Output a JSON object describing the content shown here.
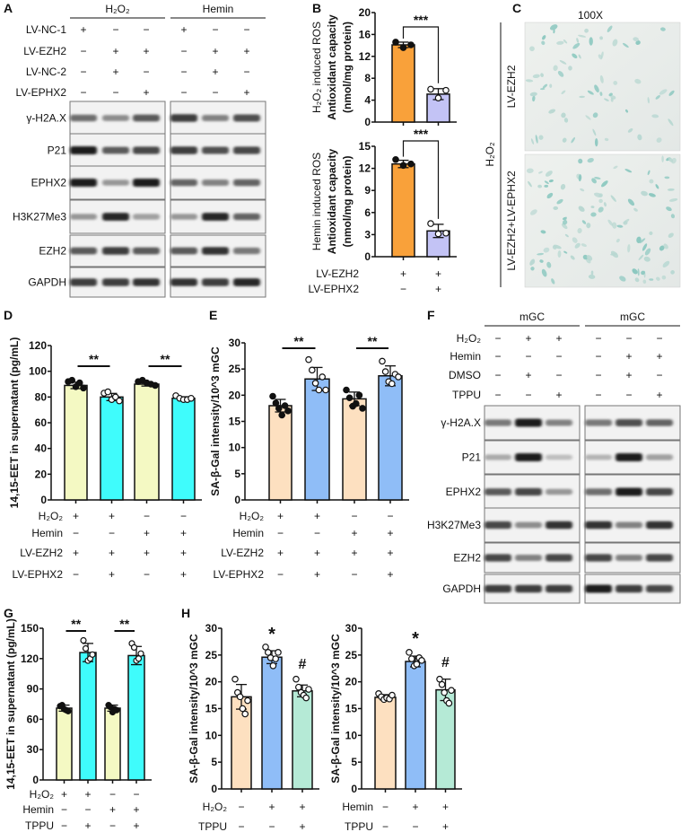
{
  "panel_letters": [
    "A",
    "B",
    "C",
    "D",
    "E",
    "F",
    "G",
    "H"
  ],
  "panel_A": {
    "groups": [
      "H₂O₂",
      "Hemin"
    ],
    "conditions": [
      {
        "label": "LV-NC-1",
        "signs": [
          "+",
          "−",
          "−",
          "+",
          "−",
          "−"
        ]
      },
      {
        "label": "LV-EZH2",
        "signs": [
          "−",
          "+",
          "+",
          "−",
          "+",
          "+"
        ]
      },
      {
        "label": "LV-NC-2",
        "signs": [
          "−",
          "+",
          "−",
          "−",
          "+",
          "−"
        ]
      },
      {
        "label": "LV-EPHX2",
        "signs": [
          "−",
          "−",
          "+",
          "−",
          "−",
          "+"
        ]
      }
    ],
    "blots": [
      {
        "label": "γ-H2A.X",
        "intensity": [
          0.6,
          0.45,
          0.7,
          0.85,
          0.5,
          0.75
        ]
      },
      {
        "label": "P21",
        "intensity": [
          1,
          0.7,
          0.8,
          0.85,
          0.75,
          0.8
        ]
      },
      {
        "label": "EPHX2",
        "intensity": [
          1,
          0.4,
          1,
          0.65,
          0.5,
          0.65
        ]
      },
      {
        "label": "H3K27Me3",
        "intensity": [
          0.4,
          0.95,
          0.35,
          0.4,
          0.95,
          0.65
        ]
      },
      {
        "label": "EZH2",
        "intensity": [
          0.7,
          0.85,
          0.7,
          0.7,
          0.9,
          0.55
        ]
      },
      {
        "label": "GAPDH",
        "intensity": [
          0.85,
          0.85,
          0.9,
          0.9,
          0.85,
          0.95
        ]
      }
    ]
  },
  "panel_C": {
    "magnification": "100X",
    "group_label": "H₂O₂",
    "rows": [
      "LV-EZH2",
      "LV-EZH2+LV-EPHX2"
    ]
  },
  "panel_F": {
    "groups": [
      "mGC",
      "mGC"
    ],
    "conditions": [
      {
        "label": "H₂O₂",
        "signs": [
          "−",
          "+",
          "+",
          "−",
          "−",
          "−"
        ]
      },
      {
        "label": "Hemin",
        "signs": [
          "−",
          "−",
          "−",
          "−",
          "+",
          "+"
        ]
      },
      {
        "label": "DMSO",
        "signs": [
          "−",
          "+",
          "−",
          "−",
          "+",
          "−"
        ]
      },
      {
        "label": "TPPU",
        "signs": [
          "−",
          "−",
          "+",
          "−",
          "−",
          "+"
        ]
      }
    ],
    "blots": [
      {
        "label": "γ-H2A.X",
        "intensity": [
          0.55,
          1,
          0.5,
          0.55,
          0.75,
          0.65
        ]
      },
      {
        "label": "P21",
        "intensity": [
          0.3,
          1,
          0.2,
          0.25,
          1,
          0.35
        ]
      },
      {
        "label": "EPHX2",
        "intensity": [
          0.7,
          0.8,
          0.4,
          0.6,
          1,
          0.8
        ]
      },
      {
        "label": "H3K27Me3",
        "intensity": [
          0.8,
          0.45,
          0.9,
          0.9,
          0.5,
          0.9
        ]
      },
      {
        "label": "EZH2",
        "intensity": [
          0.8,
          0.5,
          0.8,
          0.8,
          0.5,
          0.8
        ]
      },
      {
        "label": "GAPDH",
        "intensity": [
          0.85,
          0.85,
          0.85,
          1,
          0.85,
          0.8
        ]
      }
    ]
  },
  "chart_data": [
    {
      "id": "B1",
      "type": "bar",
      "ylabel_context": "H₂O₂ induced ROS",
      "ylabel": [
        "Antioxidant capacity",
        "(nmol/mg protein)"
      ],
      "ylim": [
        0,
        20
      ],
      "yticks": [
        0,
        4,
        8,
        12,
        16,
        20
      ],
      "bars": [
        {
          "mean": 14.1,
          "sd": 0.5,
          "points": [
            14.6,
            13.6,
            14.1
          ],
          "color": "#f9a13a",
          "filled": true
        },
        {
          "mean": 5.1,
          "sd": 1.0,
          "points": [
            6.0,
            4.4,
            5.8
          ],
          "color": "#c3c3f5",
          "filled": false
        }
      ],
      "significance": [
        {
          "bars": [
            0,
            1
          ],
          "label": "***"
        }
      ],
      "annotations": [],
      "conditions": []
    },
    {
      "id": "B2",
      "type": "bar",
      "ylabel_context": "Hemin induced ROS",
      "ylabel": [
        "Antioxidant capacity",
        "(nmol/mg protein)"
      ],
      "ylim": [
        0,
        15
      ],
      "yticks": [
        0,
        3,
        6,
        9,
        12,
        15
      ],
      "bars": [
        {
          "mean": 12.6,
          "sd": 0.5,
          "points": [
            13.2,
            12.4,
            12.6
          ],
          "color": "#f9a13a",
          "filled": true
        },
        {
          "mean": 3.5,
          "sd": 0.9,
          "points": [
            4.5,
            3.1,
            3.2
          ],
          "color": "#c3c3f5",
          "filled": false
        }
      ],
      "significance": [
        {
          "bars": [
            0,
            1
          ],
          "label": "***"
        }
      ],
      "annotations": [],
      "conditions": [
        {
          "label": "LV-EZH2",
          "signs": [
            "+",
            "+"
          ]
        },
        {
          "label": "LV-EPHX2",
          "signs": [
            "−",
            "+"
          ]
        }
      ]
    },
    {
      "id": "D",
      "type": "bar",
      "ylabel": [
        "14,15-EET in supernatant (pg/mL)"
      ],
      "ylim": [
        0,
        120
      ],
      "yticks": [
        0,
        20,
        40,
        60,
        80,
        100,
        120
      ],
      "bars": [
        {
          "mean": 89,
          "sd": 2.5,
          "points": [
            92,
            93,
            88,
            91,
            87
          ],
          "color": "#f4f9c3",
          "filled": true
        },
        {
          "mean": 80,
          "sd": 2.8,
          "points": [
            83,
            84,
            78,
            80,
            77
          ],
          "color": "#3ffcfc",
          "filled": false
        },
        {
          "mean": 90,
          "sd": 1.5,
          "points": [
            92,
            93,
            91,
            90,
            89
          ],
          "color": "#f4f9c3",
          "filled": true
        },
        {
          "mean": 79,
          "sd": 1.2,
          "points": [
            81,
            79,
            78,
            78,
            79
          ],
          "color": "#3ffcfc",
          "filled": false
        }
      ],
      "significance": [
        {
          "bars": [
            0,
            1
          ],
          "label": "**"
        },
        {
          "bars": [
            2,
            3
          ],
          "label": "**"
        }
      ],
      "annotations": [],
      "conditions": [
        {
          "label": "H₂O₂",
          "signs": [
            "+",
            "+",
            "−",
            "−"
          ]
        },
        {
          "label": "Hemin",
          "signs": [
            "−",
            "−",
            "+",
            "+"
          ]
        },
        {
          "label": "LV-EZH2",
          "signs": [
            "+",
            "+",
            "+",
            "+"
          ]
        },
        {
          "label": "LV-EPHX2",
          "signs": [
            "−",
            "+",
            "−",
            "+"
          ]
        }
      ]
    },
    {
      "id": "E",
      "type": "bar",
      "ylabel": [
        "SA-β-Gal intensity/10^3 mGC"
      ],
      "ylim": [
        0,
        30
      ],
      "yticks": [
        0,
        5,
        10,
        15,
        20,
        25,
        30
      ],
      "bars": [
        {
          "mean": 18,
          "sd": 1.2,
          "points": [
            19.8,
            18.5,
            17.5,
            16.2,
            18,
            17
          ],
          "color": "#fde0c0",
          "filled": true
        },
        {
          "mean": 23.1,
          "sd": 2.2,
          "points": [
            26.8,
            24.8,
            22.3,
            21,
            23.5,
            21
          ],
          "color": "#8fbdf7",
          "filled": false
        },
        {
          "mean": 19.3,
          "sd": 1.3,
          "points": [
            21,
            19.5,
            17.9,
            18.4,
            20,
            17.5
          ],
          "color": "#fde0c0",
          "filled": true
        },
        {
          "mean": 23.7,
          "sd": 1.9,
          "points": [
            26.5,
            24.5,
            22.6,
            22.2,
            24,
            23.5
          ],
          "color": "#8fbdf7",
          "filled": false
        }
      ],
      "significance": [
        {
          "bars": [
            0,
            1
          ],
          "label": "**"
        },
        {
          "bars": [
            2,
            3
          ],
          "label": "**"
        }
      ],
      "annotations": [],
      "conditions": [
        {
          "label": "H₂O₂",
          "signs": [
            "+",
            "+",
            "−",
            "−"
          ]
        },
        {
          "label": "Hemin",
          "signs": [
            "−",
            "−",
            "+",
            "+"
          ]
        },
        {
          "label": "LV-EZH2",
          "signs": [
            "+",
            "+",
            "+",
            "+"
          ]
        },
        {
          "label": "LV-EPHX2",
          "signs": [
            "−",
            "+",
            "−",
            "+"
          ]
        }
      ]
    },
    {
      "id": "G",
      "type": "bar",
      "ylabel": [
        "14,15-EET in supernatant (pg/mL)"
      ],
      "ylim": [
        0,
        150
      ],
      "yticks": [
        0,
        30,
        60,
        90,
        120,
        150
      ],
      "bars": [
        {
          "mean": 71,
          "sd": 3,
          "points": [
            73,
            74,
            70,
            69,
            68
          ],
          "color": "#f4f9c3",
          "filled": true
        },
        {
          "mean": 126,
          "sd": 9,
          "points": [
            138,
            130,
            118,
            120,
            124
          ],
          "color": "#3ffcfc",
          "filled": false
        },
        {
          "mean": 71,
          "sd": 3,
          "points": [
            74,
            72,
            67,
            70,
            69
          ],
          "color": "#f4f9c3",
          "filled": true
        },
        {
          "mean": 123,
          "sd": 9,
          "points": [
            135,
            131,
            118,
            120,
            125
          ],
          "color": "#3ffcfc",
          "filled": false
        }
      ],
      "significance": [
        {
          "bars": [
            0,
            1
          ],
          "label": "**"
        },
        {
          "bars": [
            2,
            3
          ],
          "label": "**"
        }
      ],
      "annotations": [],
      "conditions": [
        {
          "label": "H₂O₂",
          "signs": [
            "+",
            "+",
            "−",
            "−"
          ]
        },
        {
          "label": "Hemin",
          "signs": [
            "−",
            "−",
            "+",
            "+"
          ]
        },
        {
          "label": "TPPU",
          "signs": [
            "−",
            "+",
            "−",
            "+"
          ]
        }
      ]
    },
    {
      "id": "H1",
      "type": "bar",
      "ylabel": [
        "SA-β-Gal intensity/10^3 mGC"
      ],
      "ylim": [
        0,
        30
      ],
      "yticks": [
        0,
        5,
        10,
        15,
        20,
        25,
        30
      ],
      "bars": [
        {
          "mean": 17.2,
          "sd": 2.3,
          "points": [
            20.5,
            18,
            17.2,
            15,
            14,
            16.5
          ],
          "color": "#fde0c0",
          "filled": false
        },
        {
          "mean": 24.6,
          "sd": 1.2,
          "points": [
            26.5,
            25.5,
            24.5,
            23,
            24.3,
            25.5
          ],
          "color": "#8fbdf7",
          "filled": false
        },
        {
          "mean": 18.3,
          "sd": 1.1,
          "points": [
            20.5,
            19,
            18,
            17.5,
            17,
            18.6
          ],
          "color": "#b5ead6",
          "filled": false
        }
      ],
      "significance": [],
      "annotations": [
        {
          "bar": 1,
          "label": "*"
        },
        {
          "bar": 2,
          "label": "#"
        }
      ],
      "conditions": [
        {
          "label": "H₂O₂",
          "signs": [
            "−",
            "+",
            "+"
          ]
        },
        {
          "label": "TPPU",
          "signs": [
            "−",
            "−",
            "+"
          ]
        }
      ]
    },
    {
      "id": "H2",
      "type": "bar",
      "ylabel": [
        "SA-β-Gal intensity/10^3 mGC"
      ],
      "ylim": [
        0,
        30
      ],
      "yticks": [
        0,
        5,
        10,
        15,
        20,
        25,
        30
      ],
      "bars": [
        {
          "mean": 17.1,
          "sd": 0.5,
          "points": [
            17.8,
            17.2,
            16.7,
            17,
            16.8,
            17.5
          ],
          "color": "#fde0c0",
          "filled": false
        },
        {
          "mean": 23.8,
          "sd": 1.0,
          "points": [
            25.5,
            24.3,
            23,
            23.3,
            24.5,
            24
          ],
          "color": "#8fbdf7",
          "filled": false
        },
        {
          "mean": 18.5,
          "sd": 2.0,
          "points": [
            20.5,
            19.5,
            18,
            16.5,
            16,
            18.4
          ],
          "color": "#b5ead6",
          "filled": false
        }
      ],
      "significance": [],
      "annotations": [
        {
          "bar": 1,
          "label": "*"
        },
        {
          "bar": 2,
          "label": "#"
        }
      ],
      "conditions": [
        {
          "label": "Hemin",
          "signs": [
            "−",
            "+",
            "+"
          ]
        },
        {
          "label": "TPPU",
          "signs": [
            "−",
            "−",
            "+"
          ]
        }
      ]
    }
  ]
}
